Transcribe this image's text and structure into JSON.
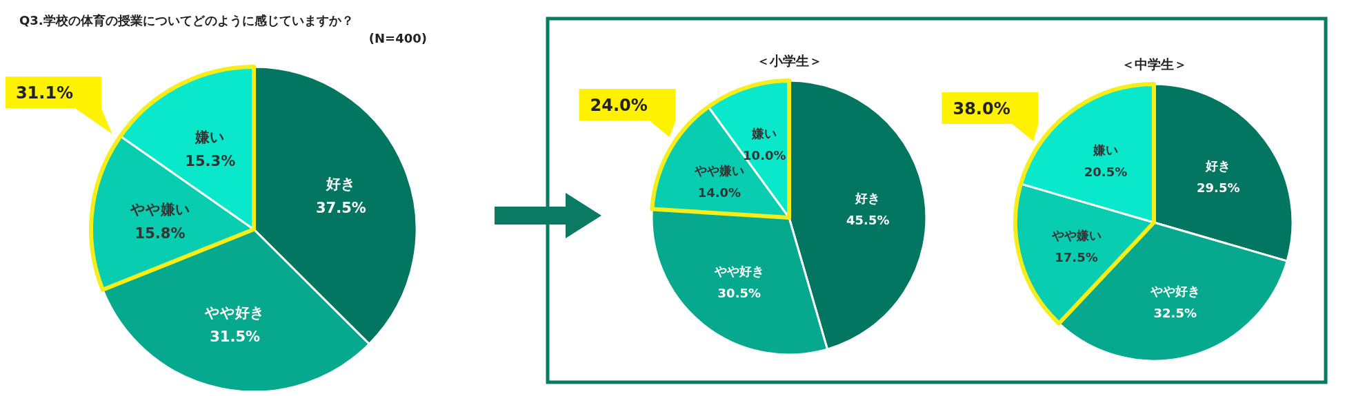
{
  "chart_data": [
    {
      "type": "pie",
      "title": "Q3.学校の体育の授業についてどのように感じていますか？",
      "categories": [
        "好き",
        "やや好き",
        "やや嫌い",
        "嫌い"
      ],
      "values": [
        37.5,
        31.5,
        15.8,
        15.3
      ],
      "value_labels": [
        "37.5%",
        "31.5%",
        "15.8%",
        "15.3%"
      ],
      "colors": [
        "#037661",
        "#06a88e",
        "#08cdb0",
        "#0ae8cc"
      ],
      "annotations": [
        "(N=400)",
        "31.1%"
      ]
    },
    {
      "type": "pie",
      "title": "＜小学生＞",
      "categories": [
        "好き",
        "やや好き",
        "やや嫌い",
        "嫌い"
      ],
      "values": [
        45.5,
        30.5,
        14.0,
        10.0
      ],
      "value_labels": [
        "45.5%",
        "30.5%",
        "14.0%",
        "10.0%"
      ],
      "colors": [
        "#037661",
        "#06a88e",
        "#08cdb0",
        "#0ae8cc"
      ],
      "annotations": [
        "24.0%"
      ]
    },
    {
      "type": "pie",
      "title": "＜中学生＞",
      "categories": [
        "好き",
        "やや好き",
        "やや嫌い",
        "嫌い"
      ],
      "values": [
        29.5,
        32.5,
        17.5,
        20.5
      ],
      "value_labels": [
        "29.5%",
        "32.5%",
        "17.5%",
        "20.5%"
      ],
      "colors": [
        "#037661",
        "#06a88e",
        "#08cdb0",
        "#0ae8cc"
      ],
      "annotations": [
        "38.0%"
      ]
    }
  ]
}
